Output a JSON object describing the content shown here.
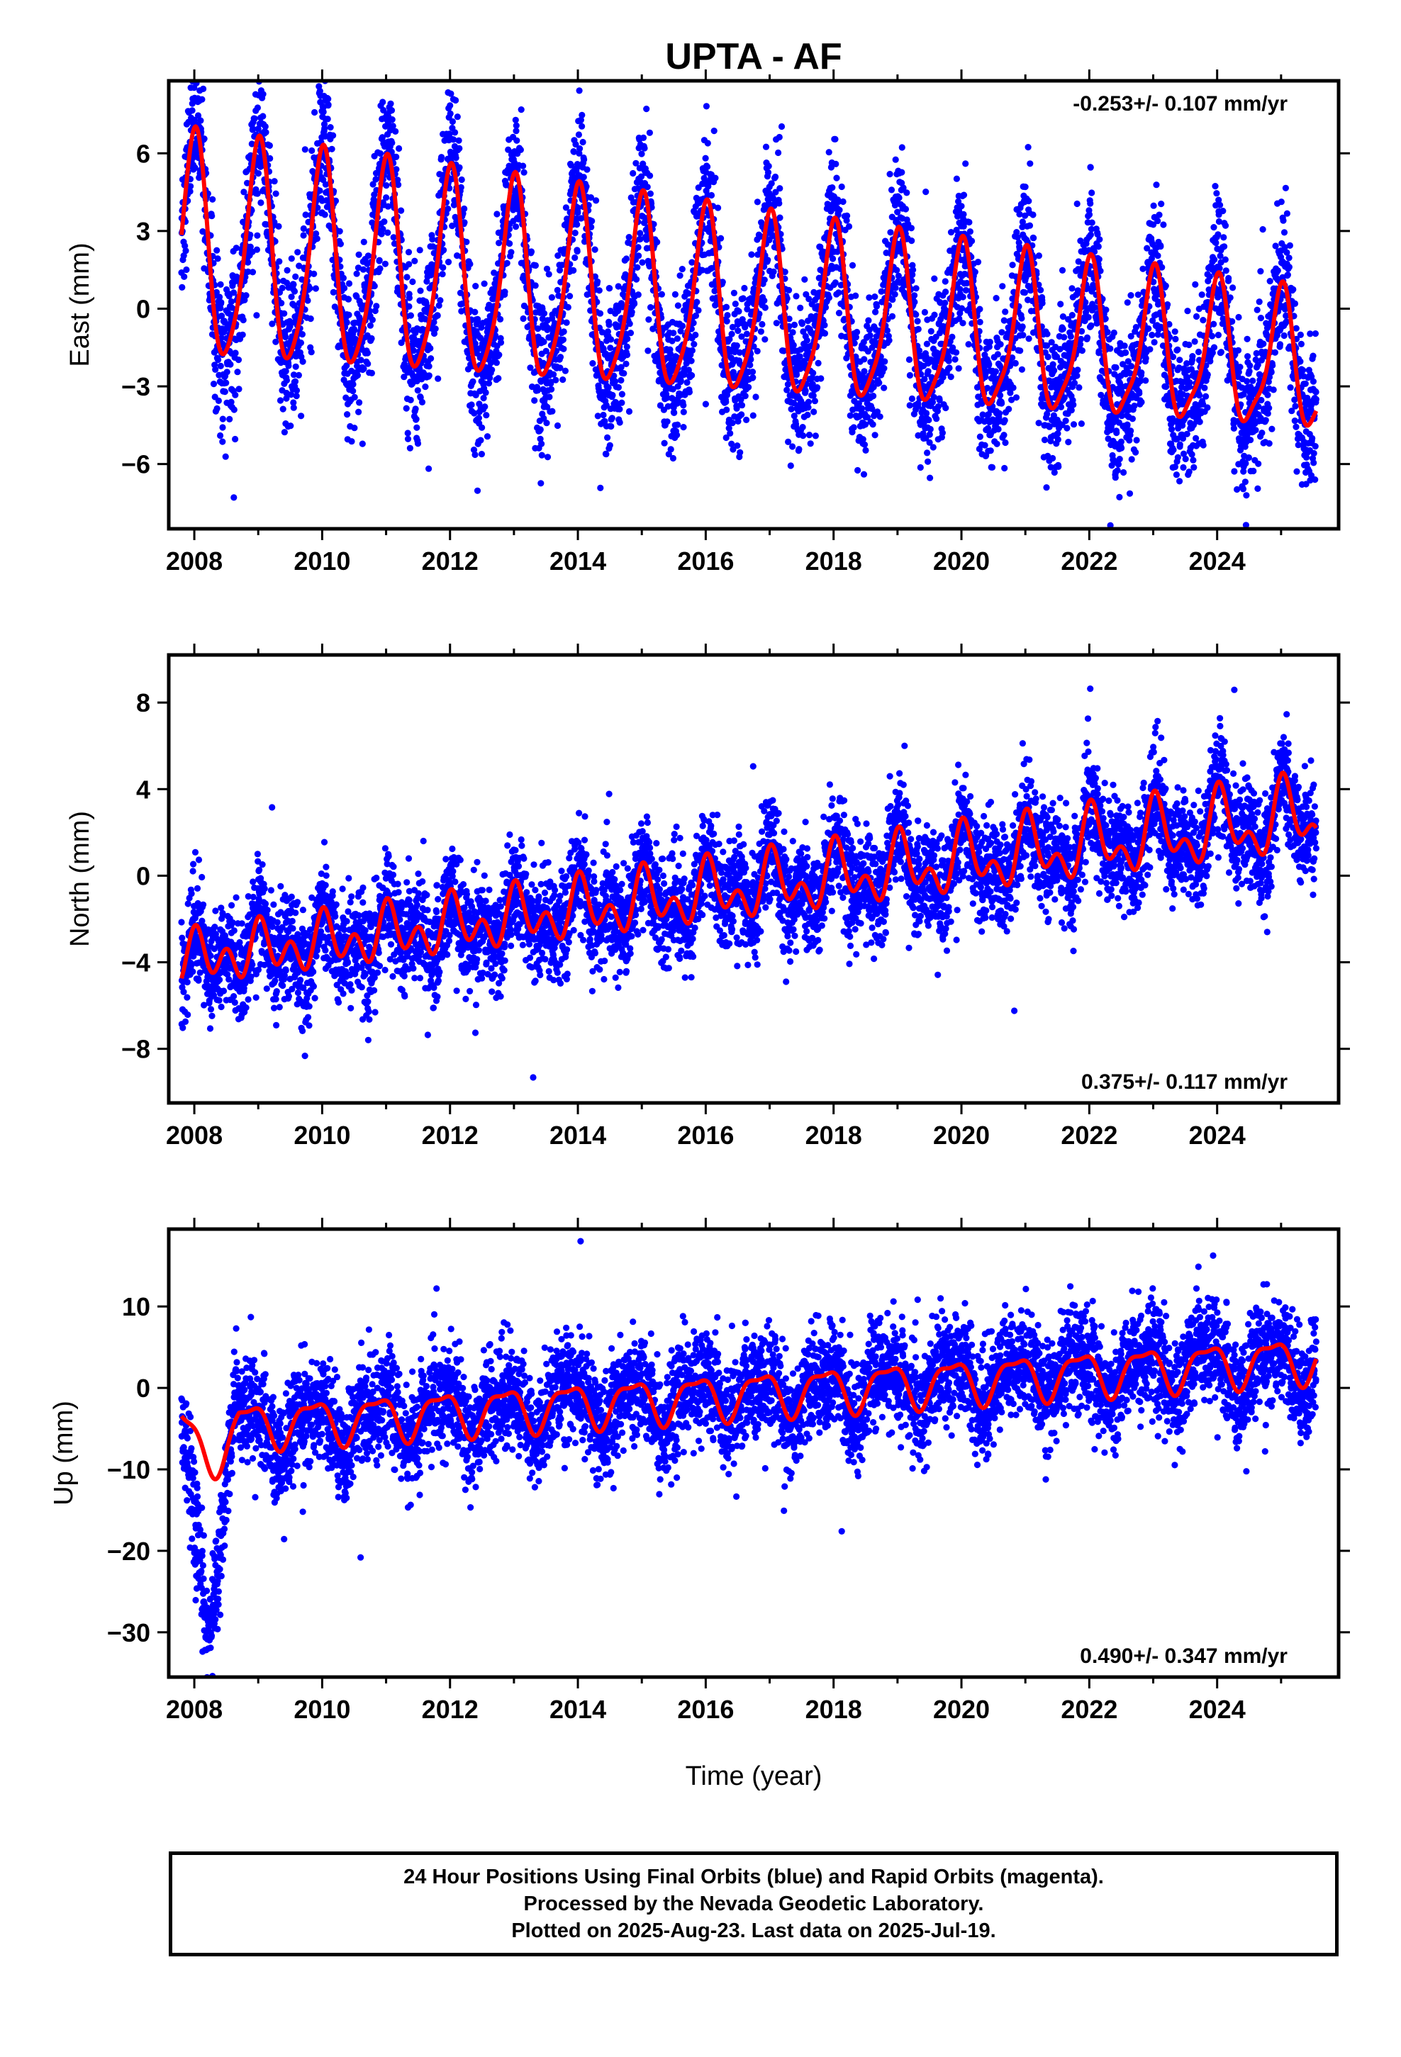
{
  "chart_data": {
    "type": "scatter",
    "title": "UPTA - AF",
    "xlabel": "Time (year)",
    "x_ticks": [
      "2008",
      "2010",
      "2012",
      "2014",
      "2016",
      "2018",
      "2020",
      "2022",
      "2024"
    ],
    "xlim": [
      2007.6,
      2025.9
    ],
    "data_start": 2007.8,
    "data_end": 2025.55,
    "grid": false,
    "legend": "none",
    "colors": {
      "points": "#0000ff",
      "model": "#ff0000",
      "axes": "#000000"
    },
    "panels": [
      {
        "id": "east",
        "ylabel": "East (mm)",
        "ylim": [
          -8.5,
          8.8
        ],
        "y_ticks": [
          "−6",
          "−3",
          "0",
          "3",
          "6"
        ],
        "y_tick_values": [
          -6,
          -3,
          0,
          3,
          6
        ],
        "rate_label": "-0.253+/- 0.107 mm/yr",
        "rate_position": "top-right",
        "model": {
          "offset": 0.0,
          "rate": -0.253,
          "ref_year": 2016.6,
          "annual_amp": 3.4,
          "annual_amp_change": -0.1,
          "annual_phase": 1.57,
          "semi_amp": 0.7,
          "semi_phase": 0.9,
          "scatter": 1.4
        },
        "events": []
      },
      {
        "id": "north",
        "ylabel": "North (mm)",
        "ylim": [
          -10.5,
          10.2
        ],
        "y_ticks": [
          "−8",
          "−4",
          "0",
          "4",
          "8"
        ],
        "y_tick_values": [
          -8,
          -4,
          0,
          4,
          8
        ],
        "rate_label": "0.375+/- 0.117 mm/yr",
        "rate_position": "bottom-right",
        "model": {
          "offset": -0.6,
          "rate": 0.375,
          "ref_year": 2016.6,
          "annual_amp": 1.0,
          "annual_amp_change": 0.04,
          "annual_phase": 1.2,
          "semi_amp": 0.9,
          "semi_phase": 1.4,
          "scatter": 1.2
        },
        "events": []
      },
      {
        "id": "up",
        "ylabel": "Up (mm)",
        "ylim": [
          -35.5,
          19.5
        ],
        "y_ticks": [
          "−30",
          "−20",
          "−10",
          "0",
          "10"
        ],
        "y_tick_values": [
          -30,
          -20,
          -10,
          0,
          10
        ],
        "rate_label": "0.490+/- 0.347 mm/yr",
        "rate_position": "bottom-right",
        "model": {
          "offset": -0.8,
          "rate": 0.49,
          "ref_year": 2016.6,
          "annual_amp": 2.6,
          "annual_amp_change": 0.0,
          "annual_phase": 2.5,
          "semi_amp": 0.9,
          "semi_phase": 0.5,
          "scatter": 3.2
        },
        "events": [
          {
            "start": 2007.8,
            "end": 2008.6,
            "offset": -20
          }
        ]
      }
    ]
  },
  "footer": {
    "line1": "24 Hour Positions Using Final Orbits (blue) and Rapid Orbits (magenta).",
    "line2": "Processed by the Nevada Geodetic Laboratory.",
    "line3": "Plotted on 2025-Aug-23. Last data on 2025-Jul-19."
  }
}
